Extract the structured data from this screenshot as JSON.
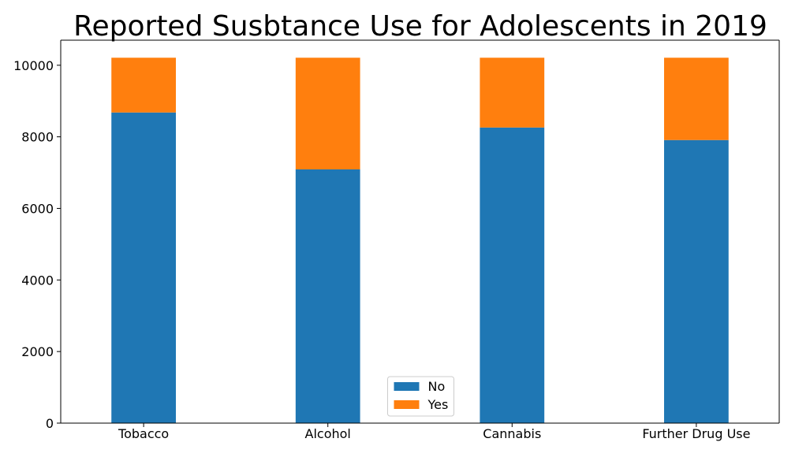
{
  "chart_data": {
    "type": "bar",
    "stacked": true,
    "title": "Reported Susbtance Use for Adolescents in 2019",
    "xlabel": "",
    "ylabel": "",
    "categories": [
      "Tobacco",
      "Alcohol",
      "Cannabis",
      "Further Drug Use"
    ],
    "series": [
      {
        "name": "No",
        "color": "#1f77b4",
        "values": [
          8680,
          7090,
          8260,
          7910
        ]
      },
      {
        "name": "Yes",
        "color": "#ff7f0e",
        "values": [
          1530,
          3120,
          1950,
          2300
        ]
      }
    ],
    "ylim": [
      0,
      10700
    ],
    "yticks": [
      0,
      2000,
      4000,
      6000,
      8000,
      10000
    ],
    "grid": false,
    "legend_position": "bottom-center"
  }
}
